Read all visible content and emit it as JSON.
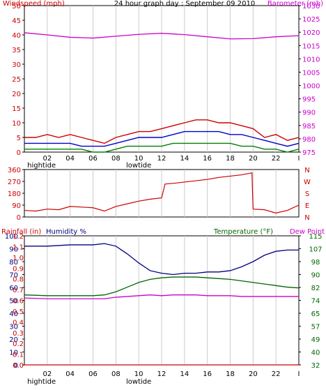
{
  "colors": {
    "wind": "#cc0000",
    "wind_avg": "#0000cc",
    "wind_low": "#008000",
    "baro": "#cc00cc",
    "dir": "#cc0000",
    "rain": "#cc0000",
    "humidity": "#000080",
    "temp": "#006600",
    "dew": "#cc00cc",
    "grid": "#cccccc",
    "frame": "#000000"
  },
  "chart_data": [
    {
      "type": "line",
      "title": "24 hour graph day : September 09 2010",
      "ylabel": "Windspeed (mph)",
      "y2label": "Barometer (mb)",
      "ylim": [
        0,
        50
      ],
      "y2lim": [
        975,
        1030
      ],
      "y_ticks": [
        "0",
        "5",
        "10",
        "15",
        "20",
        "25",
        "30",
        "35",
        "40",
        "45",
        "50"
      ],
      "y2_ticks": [
        "975",
        "980",
        "985",
        "990",
        "995",
        "1000",
        "1005",
        "1010",
        "1015",
        "1020",
        "1025",
        "1030"
      ],
      "x_tick_labels": [
        "02",
        "04",
        "06",
        "08",
        "10",
        "12",
        "14",
        "16",
        "18",
        "20",
        "22",
        "I"
      ],
      "tide_labels": [
        {
          "text": "hightide",
          "hour": 1.5
        },
        {
          "text": "lowtide",
          "hour": 10
        }
      ],
      "series": [
        {
          "name": "gust",
          "x": [
            0,
            1,
            2,
            3,
            4,
            5,
            6,
            7,
            8,
            9,
            10,
            11,
            12,
            13,
            14,
            15,
            16,
            17,
            18,
            19,
            20,
            21,
            22,
            23,
            24
          ],
          "values": [
            5,
            5,
            6,
            5,
            6,
            5,
            4,
            3,
            5,
            6,
            7,
            7,
            8,
            9,
            10,
            11,
            11,
            10,
            10,
            9,
            8,
            5,
            6,
            4,
            5
          ]
        },
        {
          "name": "average",
          "x": [
            0,
            1,
            2,
            3,
            4,
            5,
            6,
            7,
            8,
            9,
            10,
            11,
            12,
            13,
            14,
            15,
            16,
            17,
            18,
            19,
            20,
            21,
            22,
            23,
            24
          ],
          "values": [
            3,
            3,
            3,
            3,
            3,
            2,
            2,
            2,
            3,
            4,
            5,
            5,
            5,
            6,
            7,
            7,
            7,
            7,
            6,
            6,
            5,
            4,
            3,
            2,
            3
          ]
        },
        {
          "name": "lull",
          "x": [
            0,
            1,
            2,
            3,
            4,
            5,
            6,
            7,
            8,
            9,
            10,
            11,
            12,
            13,
            14,
            15,
            16,
            17,
            18,
            19,
            20,
            21,
            22,
            23,
            24
          ],
          "values": [
            1,
            1,
            1,
            1,
            1,
            1,
            0,
            0,
            1,
            2,
            2,
            2,
            2,
            3,
            3,
            3,
            3,
            3,
            3,
            2,
            2,
            1,
            1,
            0,
            1
          ]
        },
        {
          "name": "barometer",
          "axis": "y2",
          "x": [
            0,
            2,
            4,
            6,
            8,
            10,
            12,
            14,
            16,
            18,
            20,
            22,
            24
          ],
          "values": [
            1019.8,
            1019,
            1018.1,
            1017.8,
            1018.5,
            1019.2,
            1019.6,
            1019.1,
            1018.3,
            1017.5,
            1017.6,
            1018.3,
            1018.7
          ]
        }
      ]
    },
    {
      "type": "line",
      "ylim": [
        0,
        360
      ],
      "y_ticks": [
        "0",
        "90",
        "180",
        "270",
        "360"
      ],
      "y2_ticks": [
        "N",
        "E",
        "S",
        "W",
        "N"
      ],
      "x_tick_labels": [],
      "series": [
        {
          "name": "wind_direction",
          "x": [
            0,
            1,
            2,
            3,
            4,
            5,
            6,
            7,
            8,
            9,
            10,
            11,
            12,
            12.3,
            13,
            14,
            15,
            16,
            17,
            18,
            19,
            19.9,
            20,
            21,
            22,
            23,
            24
          ],
          "values": [
            50,
            45,
            60,
            55,
            80,
            75,
            70,
            45,
            80,
            100,
            120,
            135,
            145,
            250,
            255,
            265,
            275,
            285,
            300,
            310,
            320,
            335,
            60,
            55,
            30,
            50,
            90
          ]
        }
      ]
    },
    {
      "type": "line",
      "ylabel": "Rainfall (in)",
      "ylabel2": "Humidity %",
      "y2label": "Temperature (°F)",
      "y2label2": "Dew Point",
      "ylim": [
        0,
        100
      ],
      "y2lim": [
        32,
        115
      ],
      "y_ticks": [
        "0",
        "10",
        "20",
        "30",
        "40",
        "50",
        "60",
        "70",
        "80",
        "90",
        "100"
      ],
      "rain_ticks": [
        "0.0",
        "0.1",
        "0.2",
        "0.3",
        "0.4",
        "0.5",
        "0.6",
        "0.7",
        "0.8",
        "0.9",
        "1.0",
        "1.1",
        "1.2"
      ],
      "y2_ticks": [
        "32",
        "40",
        "49",
        "57",
        "65",
        "74",
        "82",
        "90",
        "98",
        "107",
        "115"
      ],
      "x_tick_labels": [
        "02",
        "04",
        "06",
        "08",
        "10",
        "12",
        "14",
        "16",
        "18",
        "20",
        "22",
        "I"
      ],
      "tide_labels": [
        {
          "text": "hightide",
          "hour": 1.5
        },
        {
          "text": "lowtide",
          "hour": 10
        }
      ],
      "series": [
        {
          "name": "rainfall",
          "axis": "rain",
          "x": [
            0,
            24
          ],
          "values": [
            0,
            0
          ]
        },
        {
          "name": "humidity",
          "x": [
            0,
            2,
            4,
            6,
            7,
            8,
            9,
            10,
            11,
            12,
            13,
            14,
            15,
            16,
            17,
            18,
            19,
            20,
            21,
            22,
            23,
            24
          ],
          "values": [
            92,
            92,
            93,
            93,
            94,
            92,
            86,
            79,
            73,
            71,
            70,
            71,
            71,
            72,
            72,
            73,
            76,
            80,
            85,
            88,
            89,
            89
          ]
        },
        {
          "name": "temperature",
          "axis": "y2",
          "x": [
            0,
            2,
            4,
            6,
            7,
            8,
            9,
            10,
            11,
            12,
            13,
            14,
            15,
            16,
            17,
            18,
            19,
            20,
            21,
            22,
            23,
            24
          ],
          "values": [
            77,
            76.5,
            76.5,
            76.5,
            77,
            79,
            82,
            85,
            87,
            88,
            88.5,
            88.5,
            88.5,
            88,
            87.5,
            87,
            86,
            85,
            84,
            83,
            82,
            81.5
          ]
        },
        {
          "name": "dew_point",
          "axis": "y2",
          "x": [
            0,
            2,
            4,
            6,
            7,
            8,
            9,
            10,
            11,
            12,
            13,
            14,
            15,
            16,
            17,
            18,
            19,
            20,
            21,
            22,
            23,
            24
          ],
          "values": [
            75,
            74.5,
            74.5,
            74.5,
            74.5,
            75.5,
            76,
            76.5,
            77,
            76.5,
            77,
            77,
            77,
            76.5,
            76.5,
            76.5,
            76,
            76,
            76,
            76,
            76,
            76
          ]
        }
      ]
    }
  ]
}
